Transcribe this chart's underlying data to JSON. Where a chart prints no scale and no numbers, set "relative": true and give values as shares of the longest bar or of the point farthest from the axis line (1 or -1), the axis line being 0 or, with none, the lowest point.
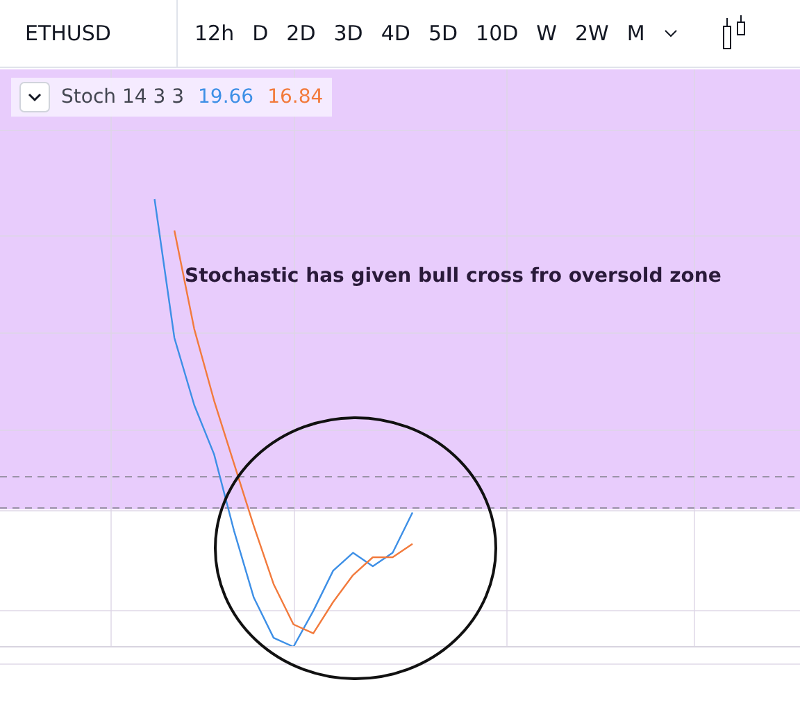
{
  "chart_data": {
    "type": "line",
    "title": "ETHUSD",
    "subtitle": "Stoch 14 3 3",
    "relative": true,
    "categories": [
      null,
      null,
      null,
      null,
      null,
      null,
      null,
      null,
      null,
      null,
      null,
      null,
      null,
      null,
      null
    ],
    "series": [
      {
        "name": "19.66",
        "color": "#3d8fe6",
        "values": [
          null,
          1,
          0.69,
          0.54,
          0.43,
          0.26,
          0.11,
          0.02,
          0,
          0.08,
          0.17,
          0.21,
          0.18,
          0.21,
          0.3
        ]
      },
      {
        "name": "16.84",
        "color": "#f27a3c",
        "values": [
          null,
          null,
          0.93,
          0.71,
          0.55,
          0.41,
          0.27,
          0.14,
          0.05,
          0.03,
          0.1,
          0.16,
          0.2,
          0.2,
          0.23
        ]
      }
    ],
    "bands": [
      {
        "axis": "y",
        "from": 0.31,
        "to": 1.29,
        "color": "#e8ccfc"
      }
    ],
    "ref_lines": [
      {
        "axis": "y",
        "value": 0.31,
        "color": "#9b93a8",
        "line_style": "dashed"
      },
      {
        "axis": "y",
        "value": 0.38,
        "color": "#9b93a8",
        "line_style": "dashed"
      }
    ],
    "annotations": [
      "Stochastic has given bull cross fro oversold zone",
      "12h",
      "D",
      "2D",
      "3D",
      "4D",
      "5D",
      "10D",
      "W",
      "2W",
      "M"
    ],
    "grid": true,
    "legend": "top left",
    "marker": "none",
    "line_style": "solid"
  }
}
